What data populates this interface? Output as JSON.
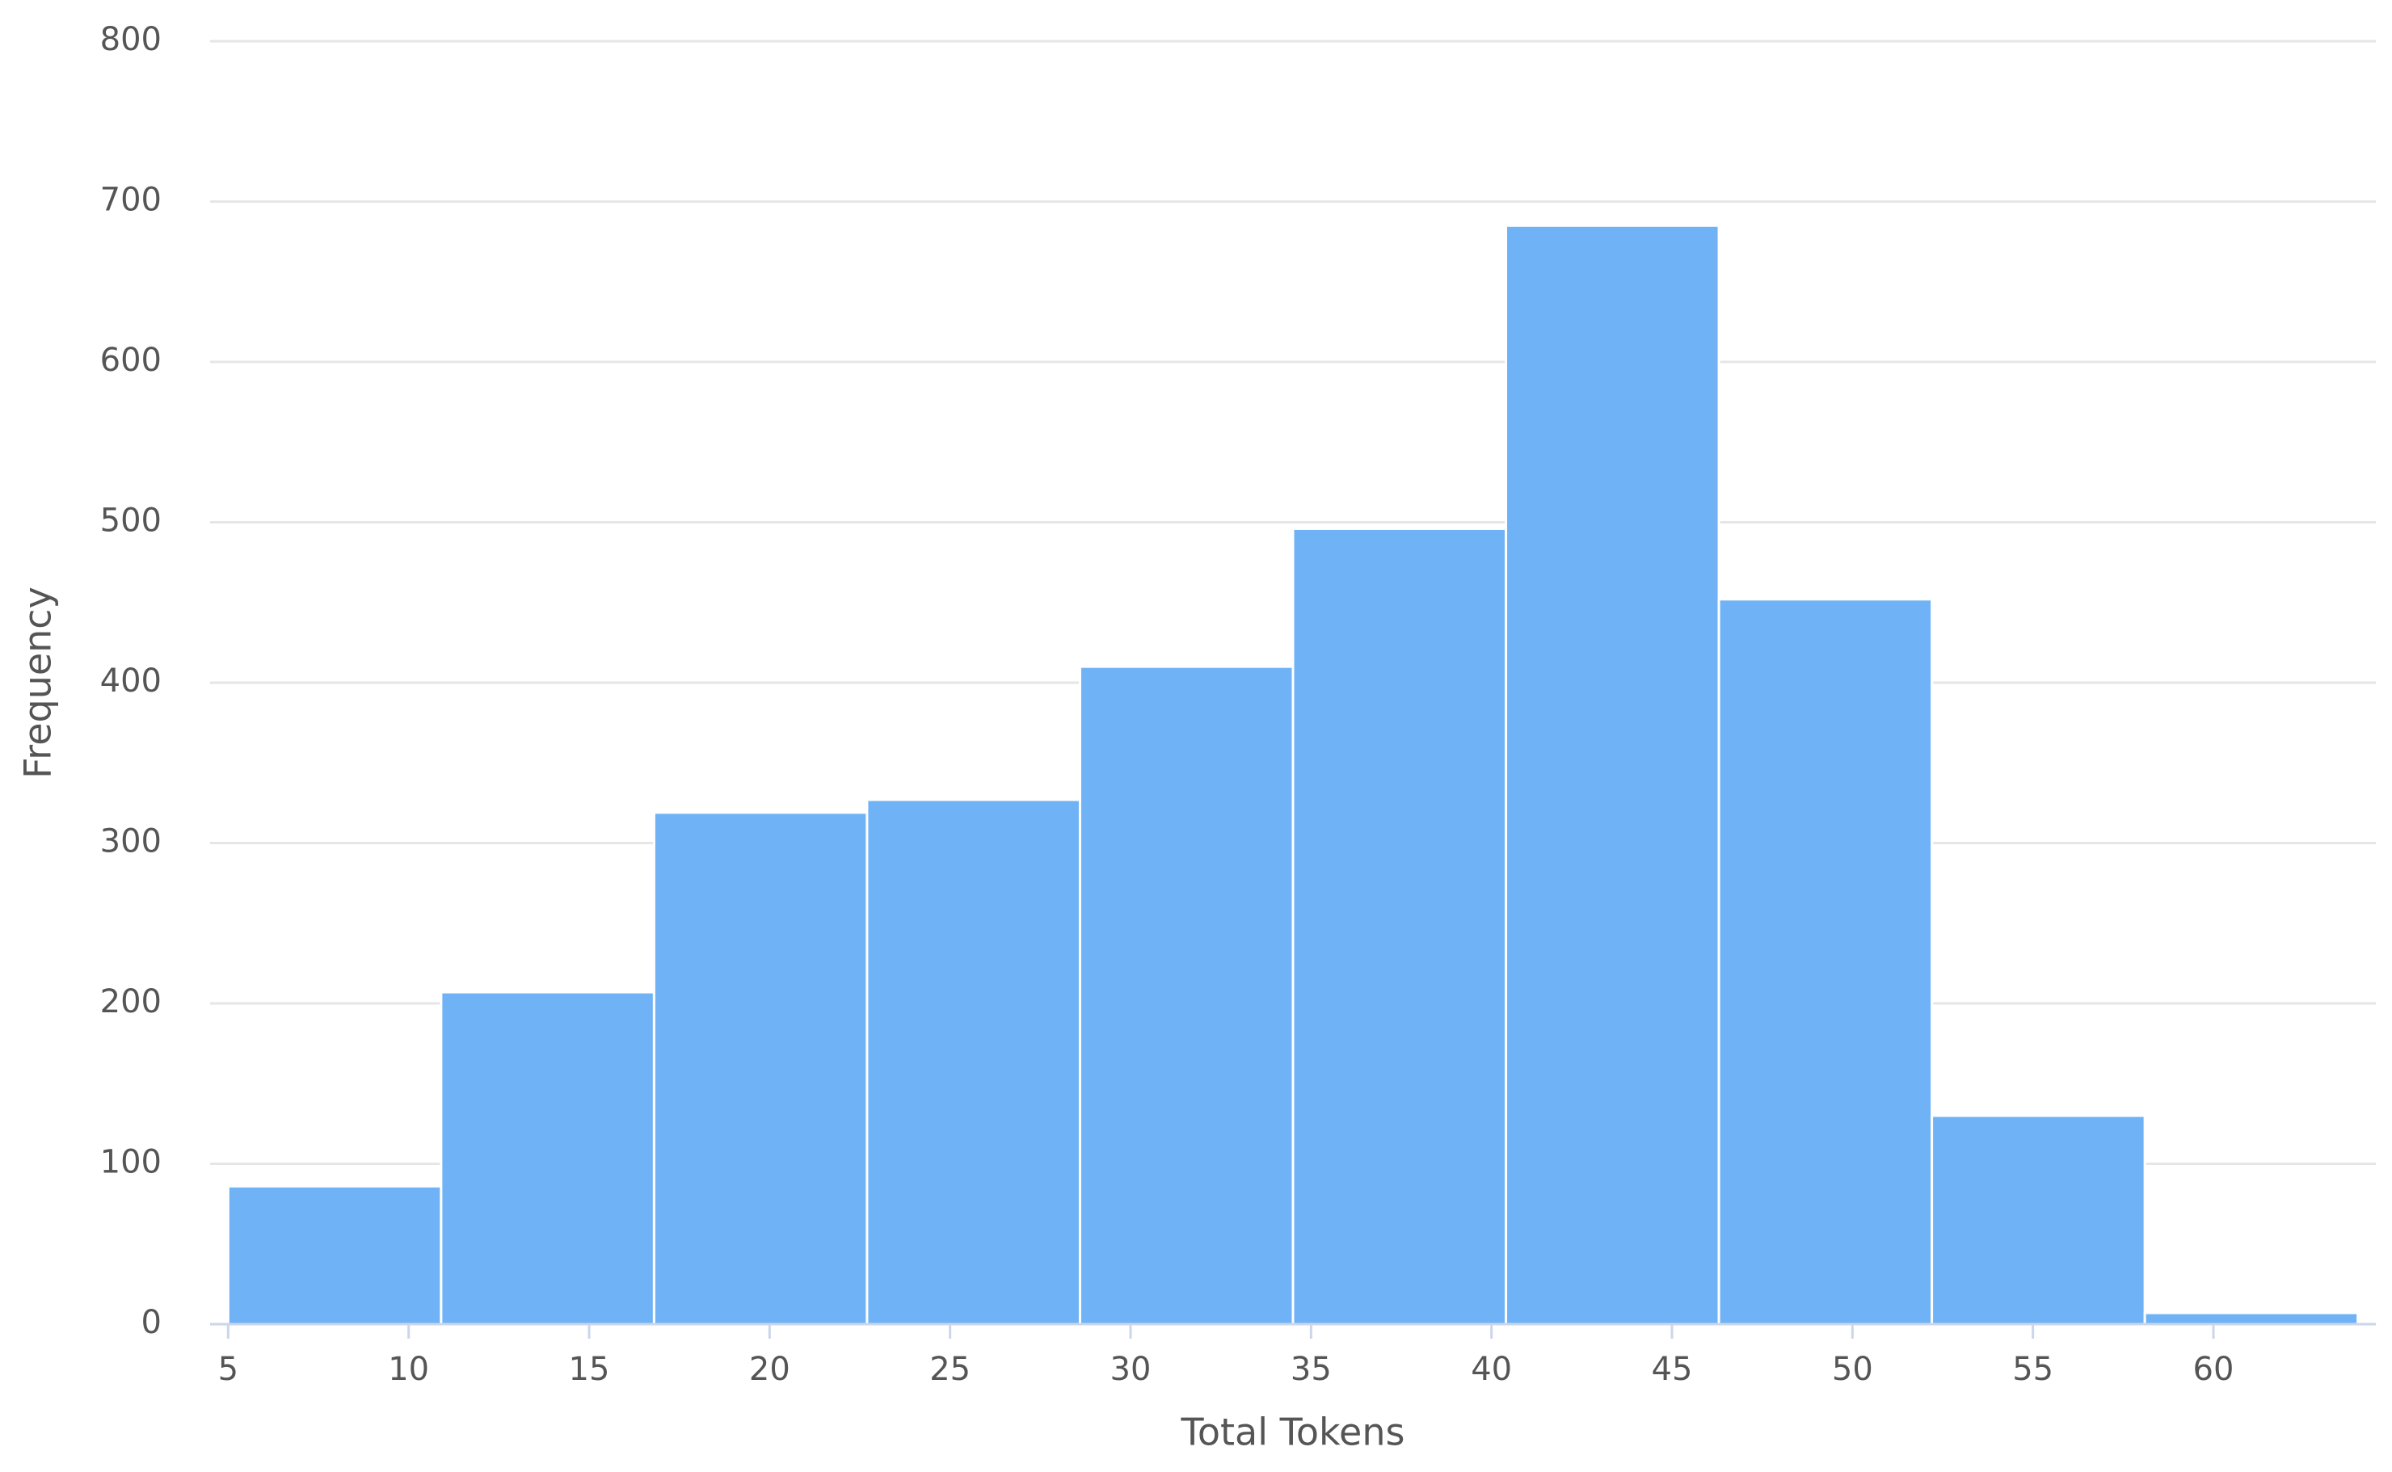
{
  "chart_data": {
    "type": "histogram",
    "x_label": "Total Tokens",
    "y_label": "Frequency",
    "bins": [
      5,
      10.9,
      16.8,
      22.7,
      28.6,
      34.5,
      40.4,
      46.3,
      52.2,
      58.1,
      64
    ],
    "values": [
      86,
      207,
      319,
      327,
      410,
      496,
      685,
      452,
      130,
      7
    ],
    "color": "#6fb3f6",
    "xlim": [
      4.5,
      64.5
    ],
    "xticks": [
      5,
      10,
      15,
      20,
      25,
      30,
      35,
      40,
      45,
      50,
      55,
      60
    ],
    "ylim": [
      0,
      800
    ],
    "yticks": [
      0,
      100,
      200,
      300,
      400,
      500,
      600,
      700,
      800
    ],
    "grid": true
  }
}
